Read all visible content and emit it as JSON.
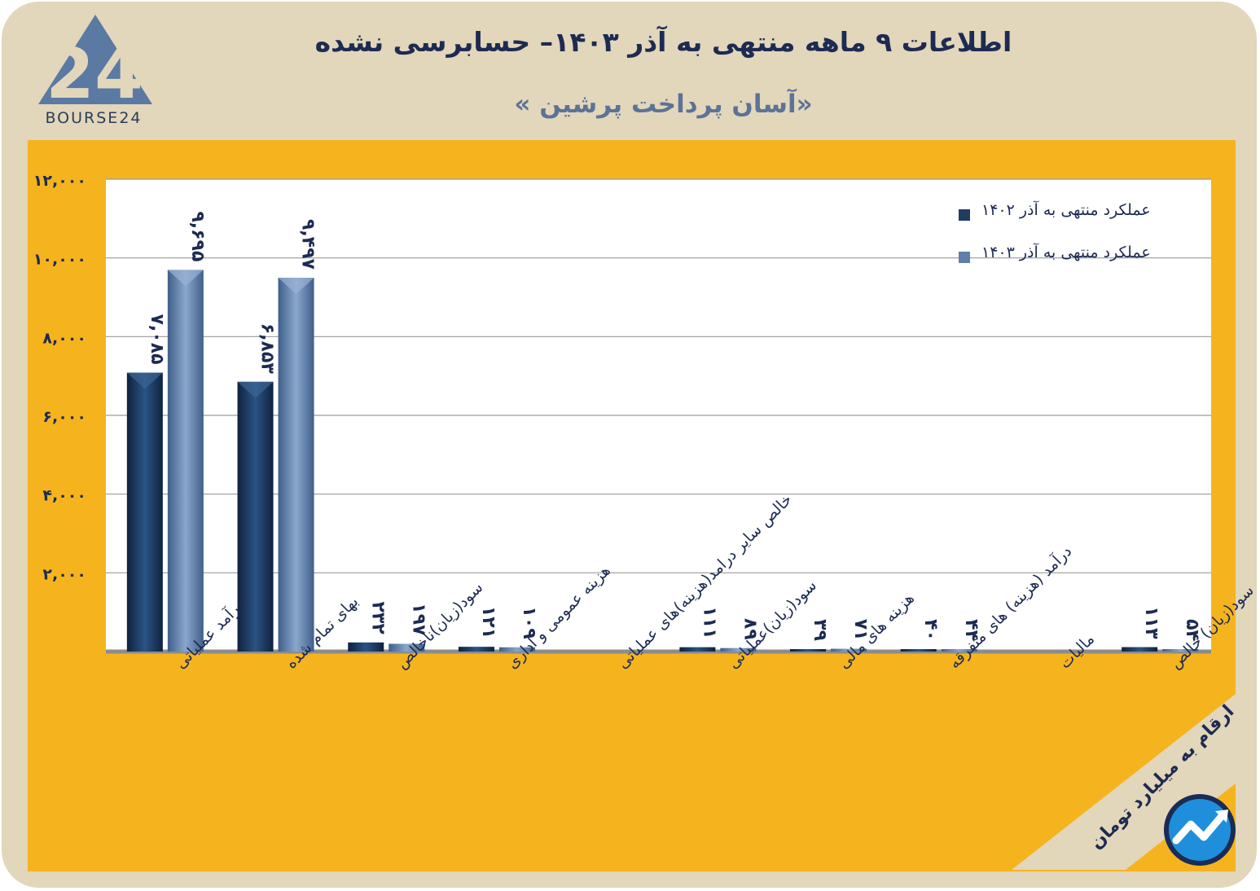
{
  "header": {
    "title": "اطلاعات ۹ ماهه منتهی به آذر ۱۴۰۳– حسابرسی نشده",
    "subtitle": "«آسان پرداخت پرشین »"
  },
  "logo": {
    "text": "BOURSE24",
    "icon": "bourse24-logo-icon"
  },
  "unit_note": "ارقام به میلیارد تومان",
  "brand_badge_icon": "trend-arrow-badge-icon",
  "colors": {
    "background": "#e2d6bb",
    "panel": "#f5b41e",
    "series_1402": "#1f3c63",
    "series_1403": "#5f7ea8",
    "text": "#1d2b52"
  },
  "chart_data": {
    "type": "bar",
    "title": "",
    "xlabel": "",
    "ylabel": "",
    "ylim": [
      0,
      12000
    ],
    "yticks": [
      2000,
      4000,
      6000,
      8000,
      10000,
      12000
    ],
    "ytick_labels": [
      "۲,۰۰۰",
      "۴,۰۰۰",
      "۶,۰۰۰",
      "۸,۰۰۰",
      "۱۰,۰۰۰",
      "۱۲,۰۰۰"
    ],
    "grid": true,
    "legend_position": "top-right",
    "categories": [
      "درآمد عملیاتی",
      "بهای تمام شده",
      "سود(زیان)ناخالص",
      "هزینه عمومی و اداری",
      "خالص سایر درامد(هزینه)های عملیاتی",
      "سود(زیان)عملیاتی",
      "هزینه های مالی",
      "درآمد (هزینه) های متفرقه",
      "مالیات",
      "سود(زیان) خالص"
    ],
    "series": [
      {
        "name": "عملکرد منتهی به آذر ۱۴۰۲",
        "values": [
          7085,
          6853,
          232,
          121,
          null,
          111,
          39,
          40,
          null,
          113
        ],
        "labels": [
          "۷,۰۸۵",
          "۶,۸۵۳",
          "۲۳۲",
          "۱۲۱",
          "",
          "۱۱۱",
          "۳۹",
          "۴۰",
          "",
          "۱۱۳"
        ]
      },
      {
        "name": "عملکرد منتهی به آذر ۱۴۰۳",
        "values": [
          9695,
          9497,
          197,
          109,
          null,
          89,
          71,
          44,
          null,
          54
        ],
        "labels": [
          "۹,۶۹۵",
          "۹,۴۹۷",
          "۱۹۷",
          "۱۰۹",
          "",
          "۸۹",
          "۷۱",
          "۴۴",
          "",
          "۵۴"
        ]
      }
    ]
  }
}
